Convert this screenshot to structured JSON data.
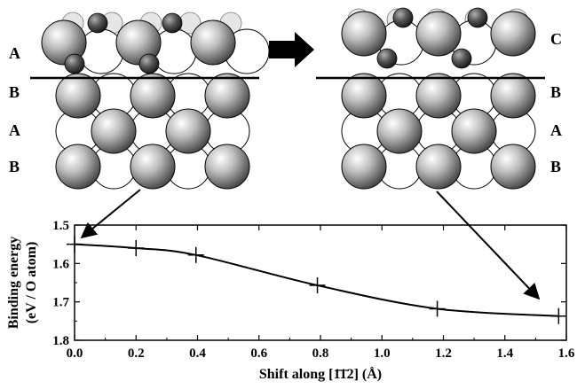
{
  "left_panel": {
    "layer_labels": [
      "A",
      "B",
      "A",
      "B"
    ]
  },
  "right_panel": {
    "layer_labels": [
      "C",
      "B",
      "A",
      "B"
    ]
  },
  "transition_icon": "right-arrow-icon",
  "chart_data": {
    "type": "line",
    "xlabel_prefix": "Shift along ",
    "xlabel_direction": "[1̄1̄2]",
    "xlabel_unit": " (Å)",
    "ylabel_line1": "Binding energy",
    "ylabel_line2": "(eV / O atom)",
    "xlim": [
      0.0,
      1.6
    ],
    "ylim": [
      1.5,
      1.8
    ],
    "y_inverted": true,
    "xticks": [
      "0.0",
      "0.2",
      "0.4",
      "0.6",
      "0.8",
      "1.0",
      "1.2",
      "1.4",
      "1.6"
    ],
    "yticks": [
      "1.5",
      "1.6",
      "1.7",
      "1.8"
    ],
    "series": [
      {
        "x": [
          0.0,
          0.2,
          0.395,
          0.79,
          1.18,
          1.575
        ],
        "y": [
          1.55,
          1.56,
          1.578,
          1.657,
          1.718,
          1.737
        ]
      }
    ]
  }
}
